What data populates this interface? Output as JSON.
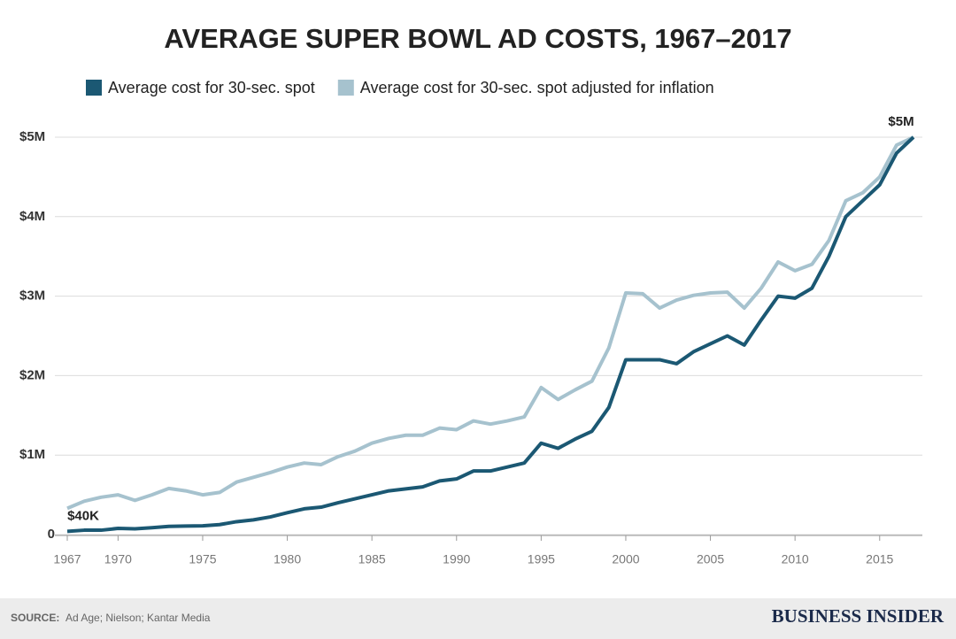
{
  "chart_data": {
    "type": "line",
    "title": "AVERAGE SUPER BOWL AD COSTS, 1967–2017",
    "x": [
      1967,
      1968,
      1969,
      1970,
      1971,
      1972,
      1973,
      1974,
      1975,
      1976,
      1977,
      1978,
      1979,
      1980,
      1981,
      1982,
      1983,
      1984,
      1985,
      1986,
      1987,
      1988,
      1989,
      1990,
      1991,
      1992,
      1993,
      1994,
      1995,
      1996,
      1997,
      1998,
      1999,
      2000,
      2001,
      2002,
      2003,
      2004,
      2005,
      2006,
      2007,
      2008,
      2009,
      2010,
      2011,
      2012,
      2013,
      2014,
      2015,
      2016,
      2017
    ],
    "series": [
      {
        "name": "Average cost for 30-sec. spot adjusted for inflation",
        "color": "#a6c2ce",
        "values": [
          330000,
          420000,
          470000,
          500000,
          430000,
          500000,
          580000,
          550000,
          500000,
          530000,
          660000,
          720000,
          780000,
          850000,
          900000,
          880000,
          980000,
          1050000,
          1150000,
          1210000,
          1250000,
          1250000,
          1340000,
          1320000,
          1430000,
          1390000,
          1430000,
          1480000,
          1850000,
          1700000,
          1820000,
          1930000,
          2350000,
          3040000,
          3030000,
          2850000,
          2950000,
          3010000,
          3040000,
          3050000,
          2850000,
          3100000,
          3430000,
          3320000,
          3400000,
          3700000,
          4200000,
          4300000,
          4500000,
          4900000,
          5000000
        ]
      },
      {
        "name": "Average cost for 30-sec. spot",
        "color": "#1b5873",
        "values": [
          40000,
          55000,
          55000,
          78000,
          72000,
          86000,
          103000,
          107000,
          110000,
          125000,
          162000,
          185000,
          222000,
          275000,
          324000,
          345000,
          400000,
          450000,
          500000,
          550000,
          575000,
          600000,
          675000,
          700000,
          800000,
          800000,
          850000,
          900000,
          1150000,
          1085000,
          1200000,
          1300000,
          1600000,
          2200000,
          2200000,
          2200000,
          2150000,
          2300000,
          2400000,
          2500000,
          2385000,
          2700000,
          3000000,
          2975000,
          3100000,
          3500000,
          4000000,
          4200000,
          4400000,
          4800000,
          5000000
        ],
        "value_labels": [
          "$40K",
          null,
          null,
          null,
          null,
          null,
          null,
          null,
          null,
          null,
          null,
          null,
          null,
          null,
          null,
          null,
          null,
          null,
          null,
          null,
          null,
          null,
          null,
          null,
          null,
          null,
          null,
          null,
          null,
          null,
          null,
          null,
          null,
          null,
          null,
          null,
          null,
          null,
          null,
          null,
          null,
          null,
          null,
          null,
          null,
          null,
          null,
          null,
          null,
          null,
          "$5M"
        ]
      }
    ],
    "xlim": [
      1967,
      2017
    ],
    "xticks": [
      1967,
      1970,
      1975,
      1980,
      1985,
      1990,
      1995,
      2000,
      2005,
      2010,
      2015
    ],
    "ylim": [
      0,
      5000000
    ],
    "yticks": [
      0,
      {
        "value": 1000000,
        "label": "$1M"
      },
      {
        "value": 2000000,
        "label": "$2M"
      },
      {
        "value": 3000000,
        "label": "$3M"
      },
      {
        "value": 4000000,
        "label": "$4M"
      },
      {
        "value": 5000000,
        "label": "$5M"
      }
    ],
    "grid": true,
    "source_label": "SOURCE:",
    "source": "Ad Age; Nielson; Kantar Media",
    "brand": "BUSINESS INSIDER"
  }
}
